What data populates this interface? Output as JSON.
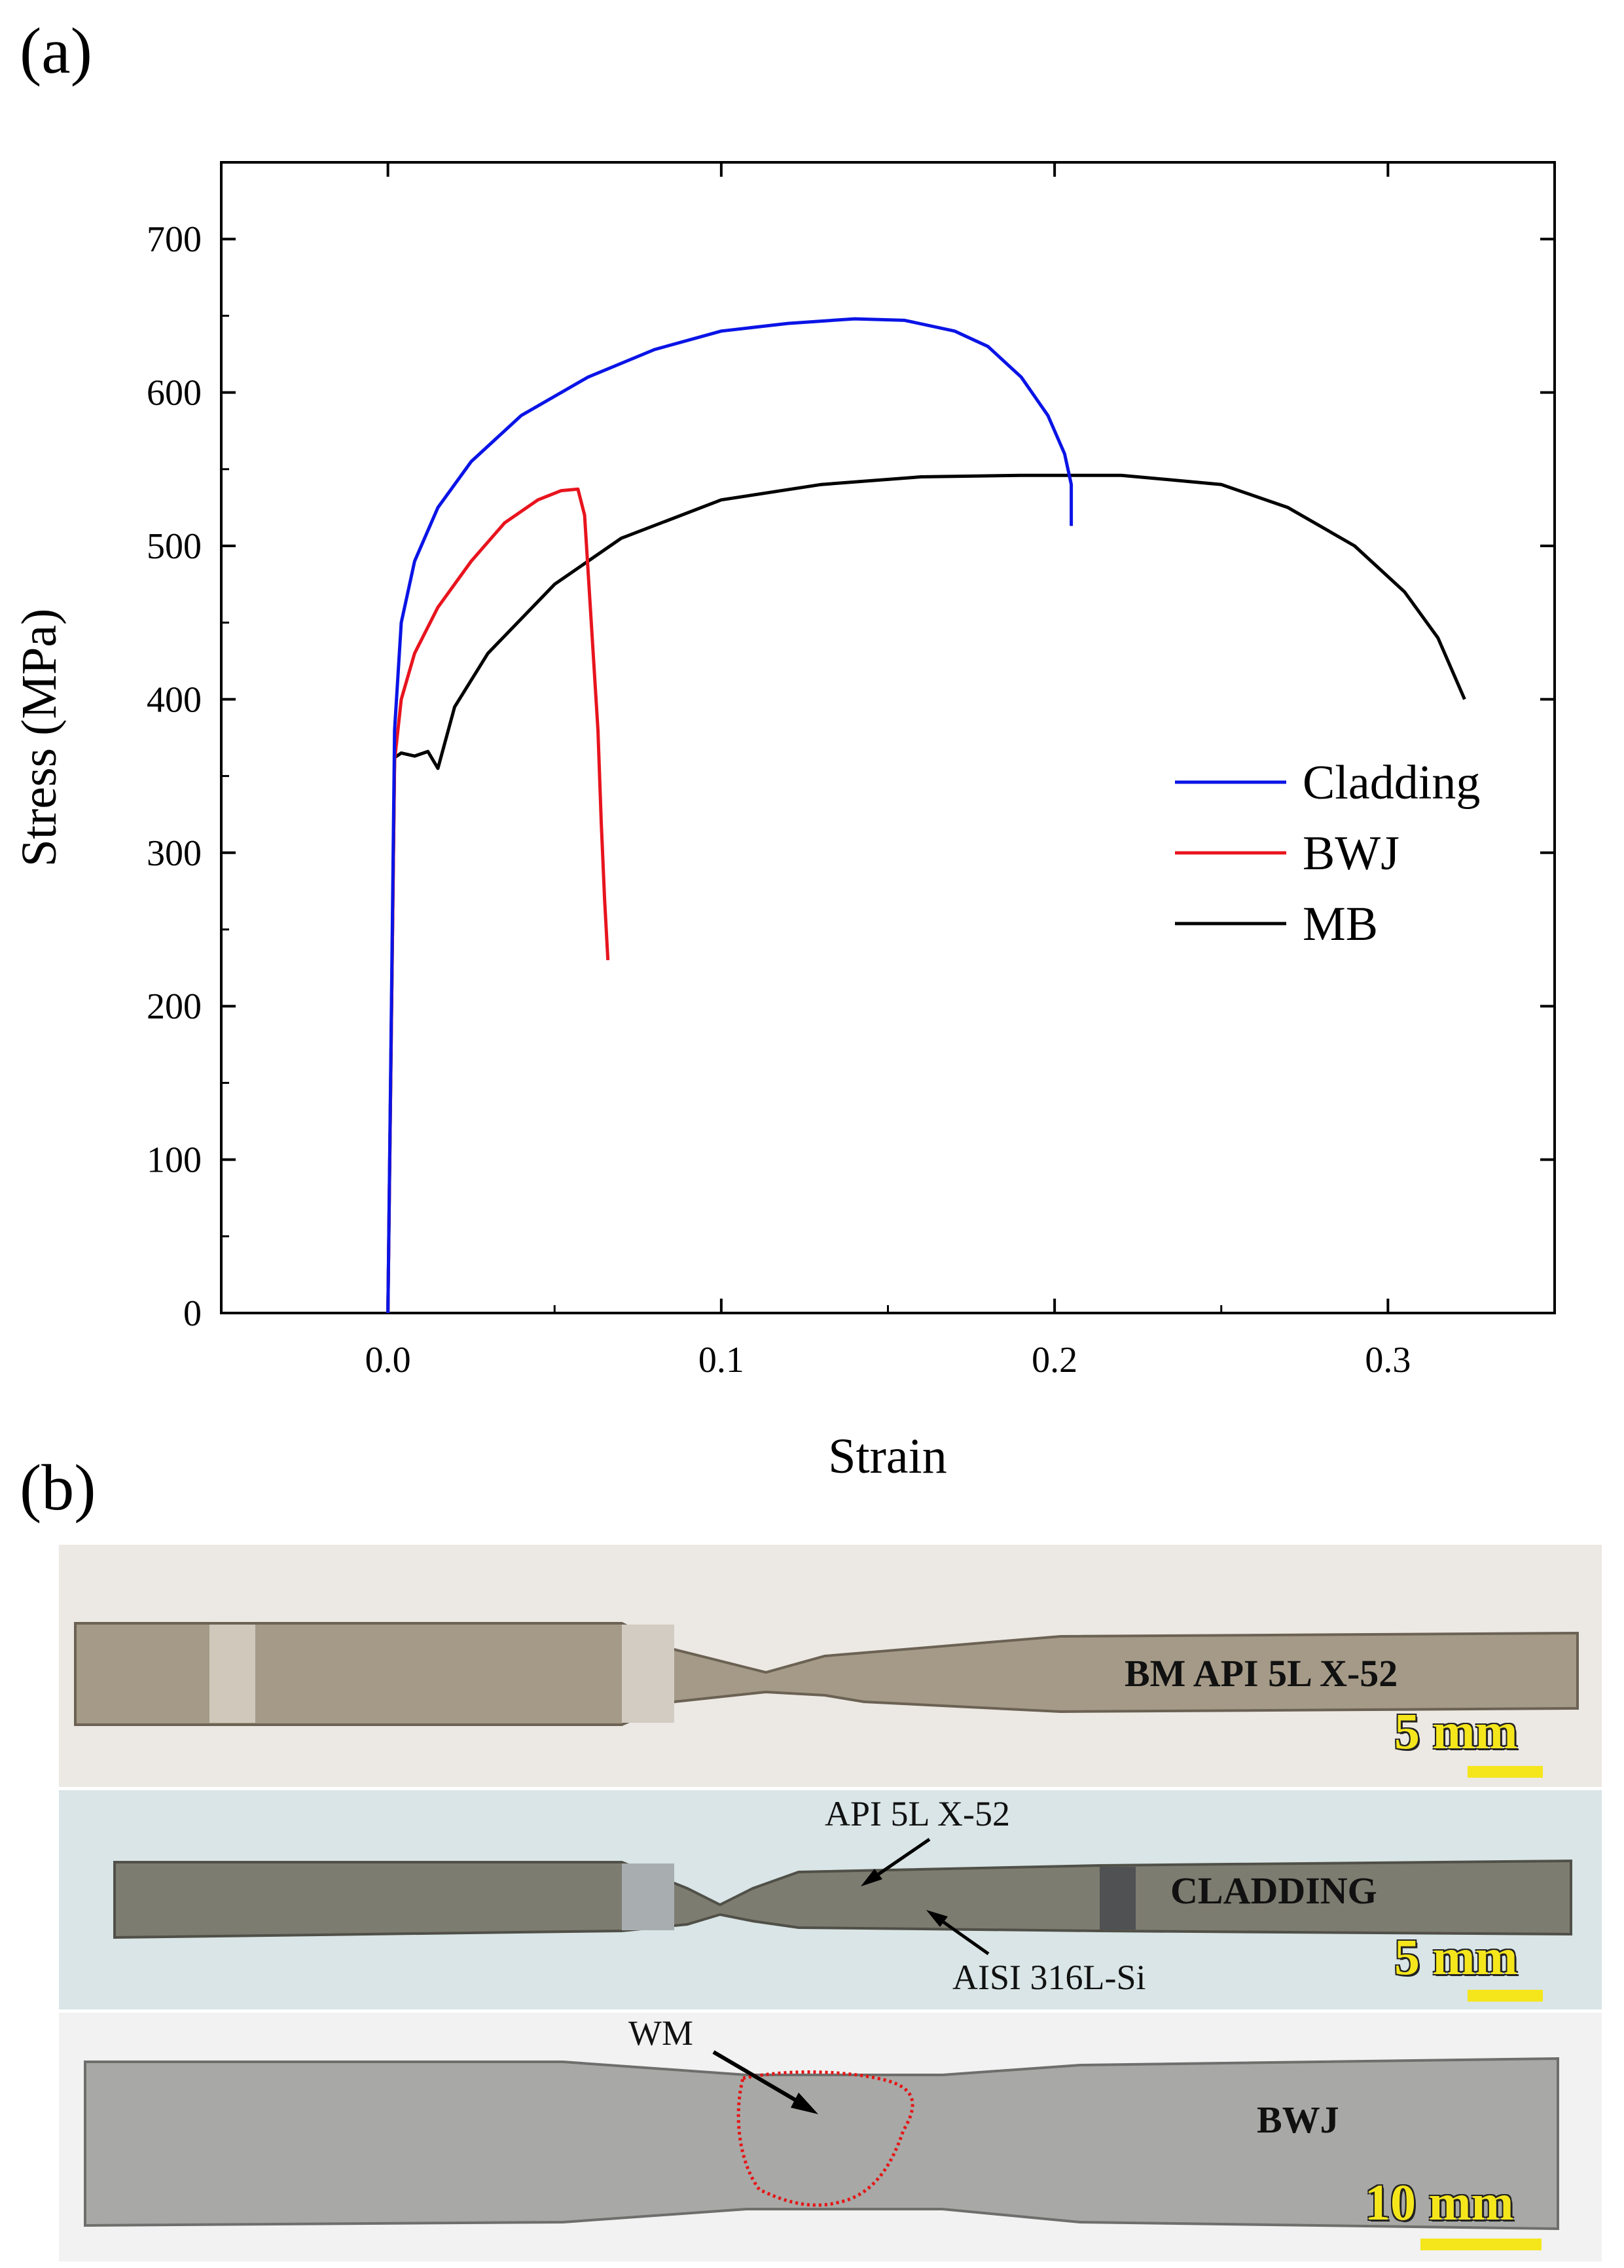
{
  "panel_a_label": "(a)",
  "panel_b_label": "(b)",
  "chart_data": {
    "type": "line",
    "title": "",
    "xlabel": "Strain",
    "ylabel": "Stress (MPa)",
    "xlim": [
      -0.05,
      0.35
    ],
    "ylim": [
      0,
      750
    ],
    "xticks": [
      0.0,
      0.1,
      0.2,
      0.3
    ],
    "xtick_labels": [
      "0.0",
      "0.1",
      "0.2",
      "0.3"
    ],
    "yticks": [
      0,
      100,
      200,
      300,
      400,
      500,
      600,
      700
    ],
    "ytick_labels": [
      "0",
      "100",
      "200",
      "300",
      "400",
      "500",
      "600",
      "700"
    ],
    "grid": false,
    "legend_position": "right",
    "series": [
      {
        "name": "Cladding",
        "color": "#0a14e6",
        "x": [
          0.0,
          0.002,
          0.004,
          0.008,
          0.015,
          0.025,
          0.04,
          0.06,
          0.08,
          0.1,
          0.12,
          0.14,
          0.155,
          0.17,
          0.18,
          0.19,
          0.198,
          0.203,
          0.205,
          0.205
        ],
        "y": [
          0,
          380,
          450,
          490,
          525,
          555,
          585,
          610,
          628,
          640,
          645,
          648,
          647,
          640,
          630,
          610,
          585,
          560,
          540,
          513
        ]
      },
      {
        "name": "BWJ",
        "color": "#e8141e",
        "x": [
          0.0,
          0.002,
          0.004,
          0.008,
          0.015,
          0.025,
          0.035,
          0.045,
          0.052,
          0.057,
          0.059,
          0.061,
          0.063,
          0.064,
          0.065,
          0.066
        ],
        "y": [
          0,
          360,
          400,
          430,
          460,
          490,
          515,
          530,
          536,
          537,
          520,
          450,
          380,
          320,
          270,
          230
        ]
      },
      {
        "name": "MB",
        "color": "#000000",
        "x": [
          0.0,
          0.002,
          0.004,
          0.008,
          0.012,
          0.015,
          0.02,
          0.03,
          0.05,
          0.07,
          0.1,
          0.13,
          0.16,
          0.19,
          0.22,
          0.25,
          0.27,
          0.29,
          0.305,
          0.315,
          0.323
        ],
        "y": [
          0,
          362,
          365,
          363,
          366,
          355,
          395,
          430,
          475,
          505,
          530,
          540,
          545,
          546,
          546,
          540,
          525,
          500,
          470,
          440,
          400
        ]
      }
    ]
  },
  "photos": {
    "bm_label": "BM API 5L X-52",
    "cladding_label": "CLADDING",
    "bwj_label": "BWJ",
    "scale_5mm_1": "5 mm",
    "scale_5mm_2": "5 mm",
    "scale_10mm": "10 mm",
    "annotation_api": "API 5L X-52",
    "annotation_aisi": "AISI 316L-Si",
    "annotation_wm": "WM"
  }
}
